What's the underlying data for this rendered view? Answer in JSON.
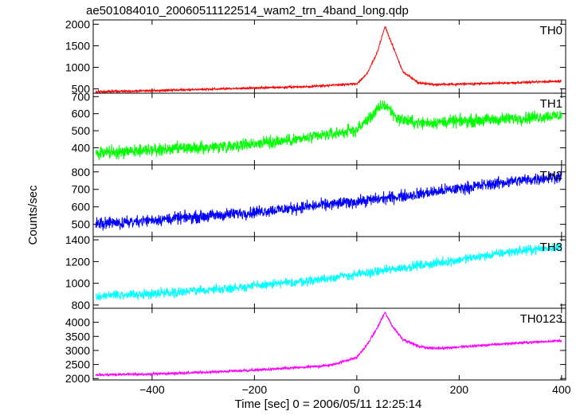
{
  "chart_data": {
    "type": "line",
    "title": "ae501084010_20060511122514_wam2_trn_4band_long.qdp",
    "xlabel": "Time [sec] 0 = 2006/05/11 12:25:14",
    "ylabel": "Counts/sec",
    "xlim": [
      -515,
      408
    ],
    "x_ticks": [
      -400,
      -200,
      0,
      200,
      400
    ],
    "x_tick_labels": [
      "−400",
      "−200",
      "0",
      "200",
      "400"
    ],
    "legend": "none; each panel labeled at top-right",
    "grid": false,
    "panels": [
      {
        "name": "TH0",
        "color": "#ff0000",
        "ylim": [
          400,
          2100
        ],
        "y_ticks": [
          500,
          1000,
          1500,
          2000
        ],
        "y_tick_labels": [
          "500",
          "1000",
          "1500",
          "2000"
        ],
        "x": [
          -510,
          -400,
          -300,
          -200,
          -100,
          0,
          20,
          40,
          55,
          70,
          90,
          120,
          150,
          200,
          300,
          400
        ],
        "y": [
          430,
          460,
          490,
          520,
          550,
          620,
          850,
          1350,
          1950,
          1500,
          900,
          640,
          600,
          610,
          640,
          680
        ],
        "noise": 20
      },
      {
        "name": "TH1",
        "color": "#00ff00",
        "ylim": [
          300,
          720
        ],
        "y_ticks": [
          400,
          500,
          600,
          700
        ],
        "y_tick_labels": [
          "400",
          "500",
          "600",
          "700"
        ],
        "x": [
          -510,
          -400,
          -300,
          -200,
          -100,
          0,
          30,
          50,
          60,
          80,
          120,
          200,
          300,
          400
        ],
        "y": [
          370,
          385,
          400,
          425,
          455,
          505,
          590,
          650,
          640,
          570,
          545,
          555,
          570,
          590
        ],
        "noise": 30
      },
      {
        "name": "TH2",
        "color": "#0000ff",
        "ylim": [
          430,
          840
        ],
        "y_ticks": [
          500,
          600,
          700,
          800
        ],
        "y_tick_labels": [
          "500",
          "600",
          "700",
          "800"
        ],
        "x": [
          -510,
          -400,
          -300,
          -200,
          -100,
          0,
          100,
          200,
          300,
          400
        ],
        "y": [
          500,
          525,
          545,
          570,
          600,
          630,
          665,
          705,
          745,
          775
        ],
        "noise": 28
      },
      {
        "name": "TH3",
        "color": "#00ffff",
        "ylim": [
          770,
          1430
        ],
        "y_ticks": [
          800,
          1000,
          1200,
          1400
        ],
        "y_tick_labels": [
          "800",
          "1000",
          "1200",
          "1400"
        ],
        "x": [
          -510,
          -400,
          -300,
          -200,
          -100,
          0,
          100,
          200,
          300,
          400
        ],
        "y": [
          880,
          905,
          935,
          975,
          1020,
          1080,
          1150,
          1215,
          1290,
          1335
        ],
        "noise": 35
      },
      {
        "name": "TH0123",
        "color": "#ff00ff",
        "ylim": [
          1950,
          4500
        ],
        "y_ticks": [
          2000,
          2500,
          3000,
          3500,
          4000
        ],
        "y_tick_labels": [
          "2000",
          "2500",
          "3000",
          "3500",
          "4000"
        ],
        "x": [
          -510,
          -400,
          -300,
          -200,
          -100,
          -50,
          0,
          20,
          40,
          55,
          70,
          90,
          120,
          150,
          200,
          300,
          400
        ],
        "y": [
          2130,
          2160,
          2220,
          2300,
          2400,
          2480,
          2750,
          3200,
          3800,
          4350,
          3850,
          3400,
          3150,
          3070,
          3120,
          3250,
          3350
        ],
        "noise": 40
      }
    ]
  }
}
